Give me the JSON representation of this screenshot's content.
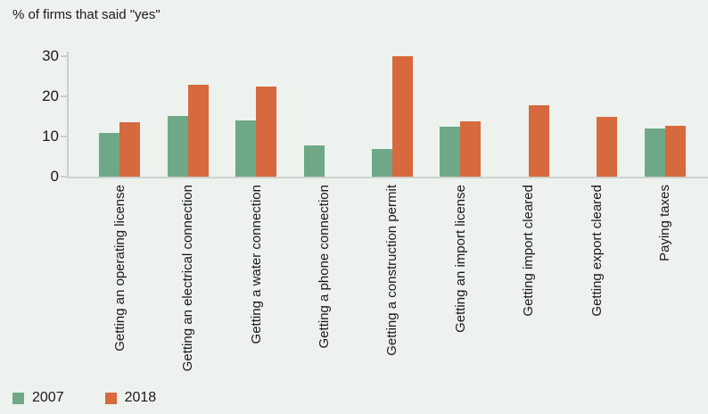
{
  "title": "% of firms that said \"yes\"",
  "colors": {
    "background": "#edf2ee",
    "series_2007": "#6ea886",
    "series_2018": "#d6693d",
    "axis_line": "#c9cfc9",
    "text": "#1a1a1a"
  },
  "chart_data": {
    "type": "bar",
    "title": "% of firms that said \"yes\"",
    "categories": [
      "Getting an operating license",
      "Getting an electrical connection",
      "Getting a water connection",
      "Getting a phone connection",
      "Getting a construction permit",
      "Getting an import license",
      "Getting import cleared",
      "Getting export cleared",
      "Paying taxes"
    ],
    "series": [
      {
        "name": "2007",
        "color": "#6ea886",
        "values": [
          10.9,
          15.1,
          14.1,
          7.8,
          6.8,
          12.5,
          null,
          null,
          12.1
        ]
      },
      {
        "name": "2018",
        "color": "#d6693d",
        "values": [
          13.6,
          23.0,
          22.4,
          null,
          30.0,
          13.8,
          17.9,
          14.8,
          12.6
        ]
      }
    ],
    "xlabel": "",
    "ylabel": "",
    "ylim": [
      0,
      30
    ],
    "yticks": [
      0,
      10,
      20,
      30
    ],
    "grid": false,
    "x_label_rotation_degrees": 90,
    "legend_position": "bottom-left"
  }
}
